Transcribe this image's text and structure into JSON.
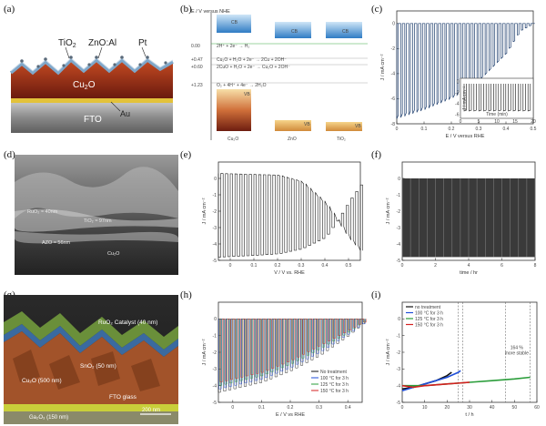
{
  "panels": {
    "a": {
      "label": "(a)",
      "layers": {
        "tio2": "TiO",
        "tio2_sub": "2",
        "zno": "ZnO:Al",
        "pt": "Pt",
        "cu2o": "Cu",
        "cu2o_sub": "2",
        "cu2o_end": "O",
        "fto": "FTO",
        "au": "Au"
      }
    },
    "b": {
      "label": "(b)",
      "axis": "E / V versus NHE",
      "levels": [
        {
          "value": "0.00",
          "eq": "2H⁺ + 2e⁻ → H₂"
        },
        {
          "value": "+0.47",
          "eq": "Cu₂O + H₂O + 2e⁻ → 2Cu + 2OH⁻"
        },
        {
          "value": "+0.60",
          "eq": "2CuO + H₂O + 2e⁻ → Cu₂O + 2OH⁻"
        },
        {
          "value": "+1.23",
          "eq": "O₂ + 4H⁺ + 4e⁻ → 2H₂O"
        }
      ],
      "materials": [
        "Cu₂O",
        "ZnO",
        "TiO₂"
      ],
      "band_labels": {
        "cb": "CB",
        "vb": "VB"
      }
    },
    "c": {
      "label": "(c)",
      "ylabel": "J / mA cm⁻²",
      "xlabel": "E / V versus RHE",
      "inset_xlabel": "Time (min)",
      "inset_ylabel": "J / mA cm⁻²"
    },
    "d": {
      "label": "(d)",
      "notes": [
        "RuO₂ ≈ 40nm",
        "TiO₂ ≈ 97nm",
        "AZO ≈ 56nm",
        "Cu₂O"
      ]
    },
    "e": {
      "label": "(e)",
      "ylabel": "J / mA cm⁻²",
      "xlabel": "V / V vs. RHE"
    },
    "f": {
      "label": "(f)",
      "ylabel": "J / mA cm⁻²",
      "xlabel": "time / hr"
    },
    "g": {
      "label": "(g)",
      "notes": [
        "RuO₂ Catalyst (40 nm)",
        "SnO₂ (50 nm)",
        "Cu₂O (500 nm)",
        "FTO glass",
        "200 nm",
        "Ga₂O₃ (150 nm)"
      ]
    },
    "h": {
      "label": "(h)",
      "ylabel": "J / mA cm⁻²",
      "xlabel": "E / V vs RHE",
      "legend": [
        "No treatment",
        "100 °C for 3 h",
        "125 °C for 3 h",
        "150 °C for 3 h"
      ]
    },
    "i": {
      "label": "(i)",
      "ylabel": "J / mA cm⁻²",
      "xlabel": "t / h",
      "legend": [
        "no treatment",
        "100 °C for 3 h",
        "125 °C for 3 h",
        "150 °C for 3 h"
      ],
      "annotation": "164 %",
      "annotation2": "more stable"
    }
  },
  "colors": {
    "cu2o_dark": "#6e1d10",
    "cu2o_mid": "#b23a1a",
    "fto": "#9a9a9a",
    "au": "#e3c23a",
    "cb": "#3d8fd1",
    "vb_top": "#f7dfa8",
    "vb_bot": "#7a2310",
    "trace": "#1f3f6e",
    "black": "#111111",
    "blue": "#1f4ed8",
    "red": "#d42020",
    "green": "#2a9d3a",
    "orange": "#d07a2a"
  },
  "chart_data": [
    {
      "panel": "c",
      "type": "line",
      "xlabel": "E / V versus RHE",
      "ylabel": "J / mA cm⁻²",
      "xlim": [
        0,
        0.5
      ],
      "ylim": [
        -8,
        1
      ],
      "xticks": [
        0,
        0.1,
        0.2,
        0.3,
        0.4,
        0.5
      ],
      "yticks": [
        0,
        -2,
        -4,
        -6,
        -8
      ],
      "series": [
        {
          "chopped_dark": 0.0,
          "light_envelope": {
            "x": [
              0.0,
              0.1,
              0.2,
              0.3,
              0.4,
              0.45,
              0.5
            ],
            "y": [
              -7.6,
              -6.9,
              -6.0,
              -4.6,
              -2.4,
              -0.6,
              0.0
            ]
          }
        }
      ],
      "inset": {
        "xticks": [
          0,
          5,
          10,
          15,
          20
        ],
        "yticks": [
          0,
          -2,
          -4,
          -6
        ]
      }
    },
    {
      "panel": "e",
      "type": "line",
      "xlabel": "V / V vs. RHE",
      "ylabel": "J / mA cm⁻²",
      "xlim": [
        -0.05,
        0.55
      ],
      "ylim": [
        -5,
        1
      ],
      "xticks": [
        0,
        0.1,
        0.2,
        0.3,
        0.4,
        0.5
      ],
      "yticks": [
        0,
        -1,
        -2,
        -3,
        -4,
        -5
      ],
      "series": [
        {
          "light_envelope": {
            "x": [
              -0.05,
              0.1,
              0.2,
              0.3,
              0.4,
              0.45,
              0.5,
              0.55
            ],
            "y": [
              -4.8,
              -4.7,
              -4.6,
              -4.3,
              -3.6,
              -2.6,
              -1.4,
              -0.4
            ]
          },
          "dark": {
            "x": [
              -0.05,
              0.2,
              0.3,
              0.4,
              0.45,
              0.5,
              0.55
            ],
            "y": [
              0.3,
              0.2,
              -0.2,
              -1.5,
              -2.5,
              -3.6,
              -4.4
            ]
          }
        }
      ]
    },
    {
      "panel": "f",
      "type": "line",
      "xlabel": "time / hr",
      "ylabel": "J / mA cm⁻²",
      "xlim": [
        0,
        8
      ],
      "ylim": [
        -5,
        1
      ],
      "xticks": [
        0,
        2,
        4,
        6,
        8
      ],
      "yticks": [
        0,
        -1,
        -2,
        -3,
        -4,
        -5
      ],
      "series": [
        {
          "light": -4.8,
          "dark": 0.0
        }
      ]
    },
    {
      "panel": "h",
      "type": "line",
      "xlabel": "E / V vs RHE",
      "ylabel": "J / mA cm⁻²",
      "xlim": [
        -0.05,
        0.45
      ],
      "ylim": [
        -5,
        1
      ],
      "xticks": [
        0,
        0.1,
        0.2,
        0.3,
        0.4
      ],
      "yticks": [
        0,
        -1,
        -2,
        -3,
        -4,
        -5
      ],
      "series": [
        {
          "name": "No treatment",
          "envelope": {
            "x": [
              -0.05,
              0.1,
              0.2,
              0.3,
              0.4,
              0.45
            ],
            "y": [
              -4.4,
              -3.8,
              -3.1,
              -2.2,
              -1.0,
              -0.3
            ]
          }
        },
        {
          "name": "100 °C for 3 h",
          "envelope": {
            "x": [
              -0.05,
              0.1,
              0.2,
              0.3,
              0.4,
              0.45
            ],
            "y": [
              -4.2,
              -3.6,
              -2.9,
              -2.0,
              -0.9,
              -0.3
            ]
          }
        },
        {
          "name": "125 °C for 3 h",
          "envelope": {
            "x": [
              -0.05,
              0.1,
              0.2,
              0.3,
              0.4,
              0.45
            ],
            "y": [
              -4.0,
              -3.4,
              -2.7,
              -1.8,
              -0.8,
              -0.2
            ]
          }
        },
        {
          "name": "150 °C for 3 h",
          "envelope": {
            "x": [
              -0.05,
              0.1,
              0.2,
              0.3,
              0.4,
              0.45
            ],
            "y": [
              -3.8,
              -3.2,
              -2.5,
              -1.6,
              -0.7,
              -0.2
            ]
          }
        }
      ]
    },
    {
      "panel": "i",
      "type": "line",
      "xlabel": "t / h",
      "ylabel": "J / mA cm⁻²",
      "xlim": [
        0,
        60
      ],
      "ylim": [
        -5,
        1
      ],
      "xticks": [
        0,
        10,
        20,
        30,
        40,
        50,
        60
      ],
      "yticks": [
        0,
        -1,
        -2,
        -3,
        -4,
        -5
      ],
      "series": [
        {
          "name": "no treatment",
          "x": [
            0,
            5,
            10,
            15,
            20,
            22
          ],
          "y": [
            -4.2,
            -4.1,
            -3.9,
            -3.7,
            -3.4,
            -3.2
          ]
        },
        {
          "name": "100 °C for 3 h",
          "x": [
            0,
            5,
            10,
            15,
            20,
            25,
            26
          ],
          "y": [
            -4.3,
            -4.1,
            -3.9,
            -3.7,
            -3.5,
            -3.2,
            -3.1
          ]
        },
        {
          "name": "125 °C for 3 h",
          "x": [
            0,
            10,
            20,
            30,
            40,
            50,
            57
          ],
          "y": [
            -4.0,
            -4.0,
            -3.9,
            -3.8,
            -3.7,
            -3.6,
            -3.5
          ]
        },
        {
          "name": "150 °C for 3 h",
          "x": [
            0,
            5,
            10,
            20,
            30
          ],
          "y": [
            -4.0,
            -4.1,
            -4.0,
            -3.9,
            -3.8
          ]
        }
      ],
      "vlines": [
        25,
        27,
        46,
        57
      ]
    }
  ]
}
